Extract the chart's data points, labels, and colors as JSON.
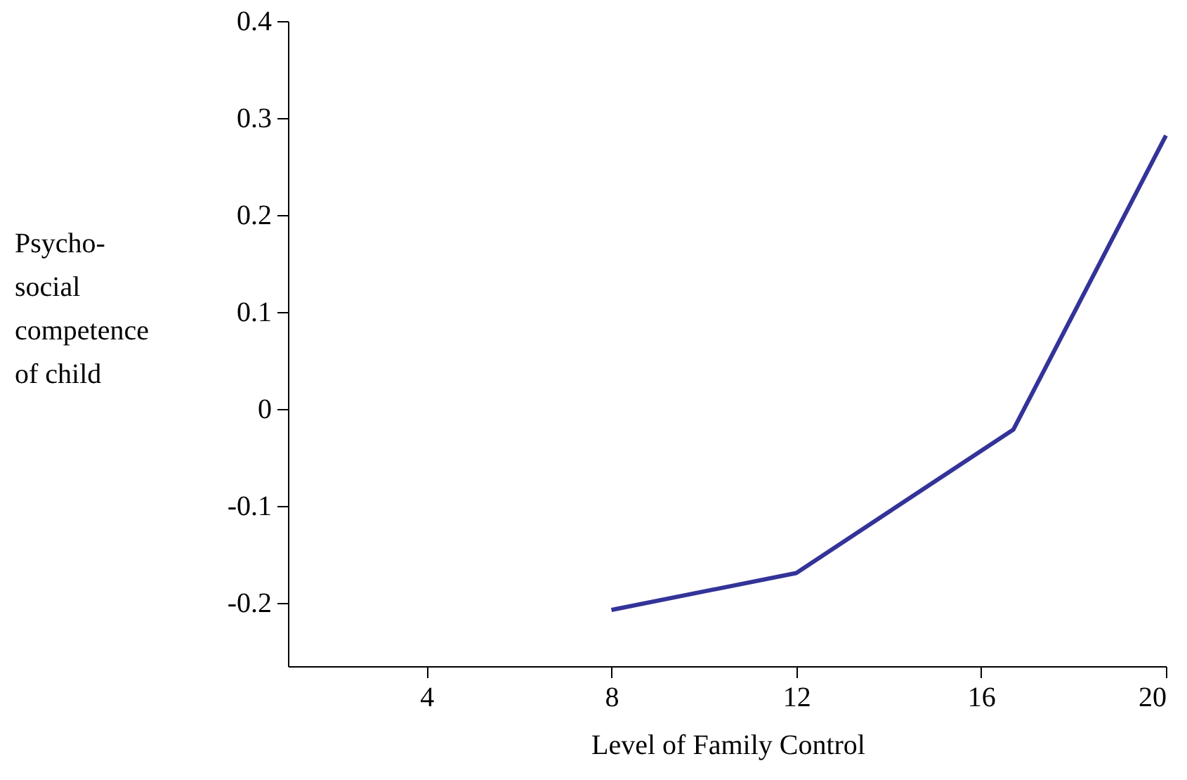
{
  "chart_data": {
    "type": "line",
    "xlabel": "Level of Family Control",
    "ylabel": "Psycho-\nsocial\ncompetence\nof child",
    "x": [
      8,
      12,
      16.7,
      20
    ],
    "series": [
      {
        "color": "#333399",
        "values": [
          -0.207,
          -0.169,
          -0.021,
          0.282
        ]
      }
    ],
    "xlim": [
      1,
      20
    ],
    "xticks": [
      4,
      8,
      12,
      16,
      20
    ],
    "ylim": [
      -0.265,
      0.4
    ],
    "yticks": [
      -0.2,
      -0.1,
      0,
      0.1,
      0.2,
      0.3,
      0.4
    ],
    "grid": false,
    "marker": "none",
    "line_style": "solid"
  }
}
